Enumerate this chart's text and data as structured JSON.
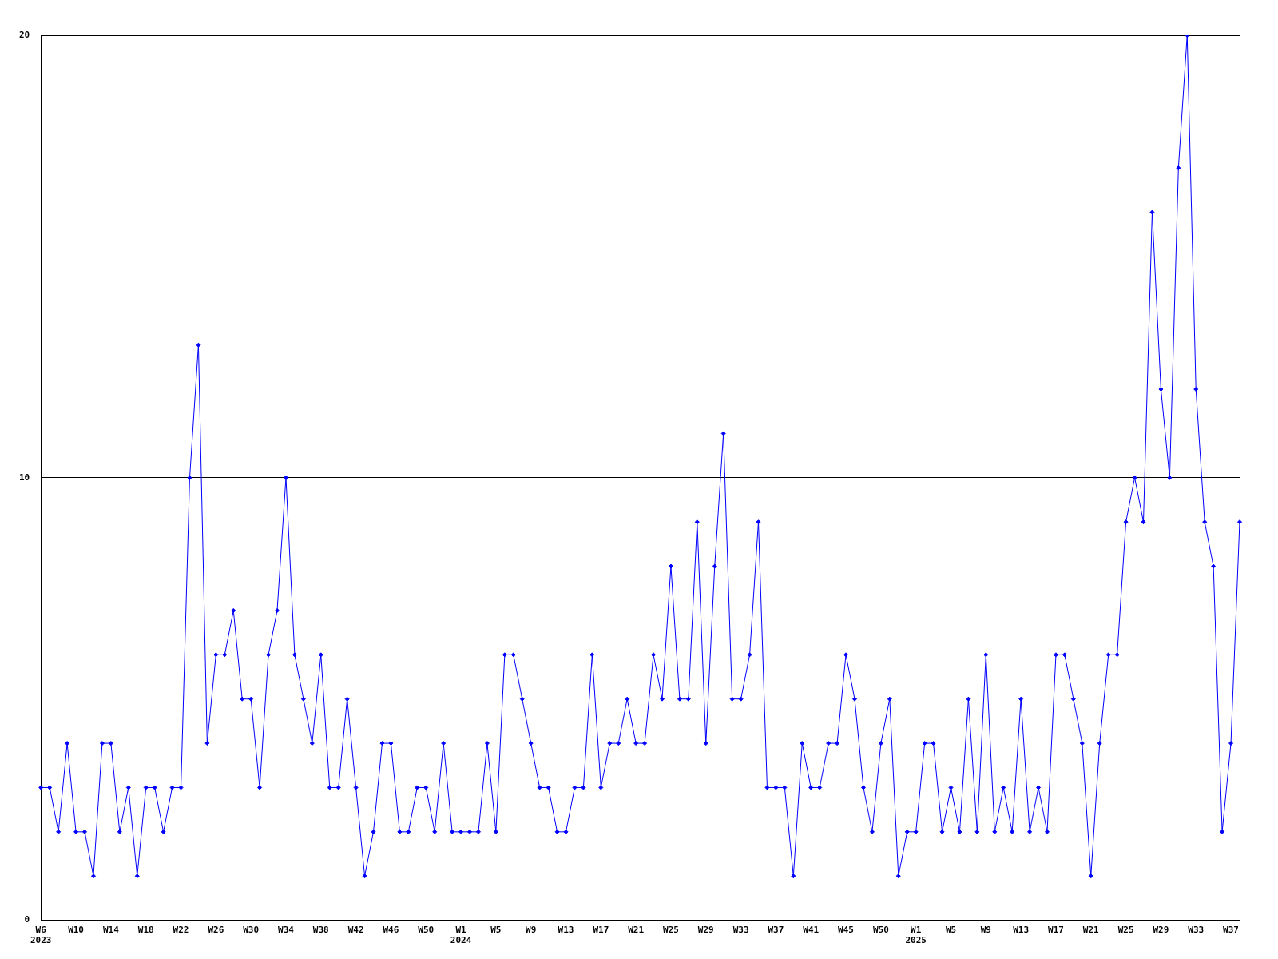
{
  "chart_data": {
    "type": "line",
    "categories": [
      "W6\n2023",
      null,
      null,
      null,
      "W10",
      null,
      null,
      null,
      "W14",
      null,
      null,
      null,
      "W18",
      null,
      null,
      null,
      "W22",
      null,
      null,
      null,
      "W26",
      null,
      null,
      null,
      "W30",
      null,
      null,
      null,
      "W34",
      null,
      null,
      null,
      "W38",
      null,
      null,
      null,
      "W42",
      null,
      null,
      null,
      "W46",
      null,
      null,
      null,
      "W50",
      null,
      null,
      null,
      "W1\n2024",
      null,
      null,
      null,
      "W5",
      null,
      null,
      null,
      "W9",
      null,
      null,
      null,
      "W13",
      null,
      null,
      null,
      "W17",
      null,
      null,
      null,
      "W21",
      null,
      null,
      null,
      "W25",
      null,
      null,
      null,
      "W29",
      null,
      null,
      null,
      "W33",
      null,
      null,
      null,
      "W37",
      null,
      null,
      null,
      "W41",
      null,
      null,
      null,
      "W45",
      null,
      null,
      null,
      "W50",
      null,
      null,
      null,
      "W1\n2025",
      null,
      null,
      null,
      "W5",
      null,
      null,
      null,
      "W9",
      null,
      null,
      null,
      "W13",
      null,
      null,
      null,
      "W17",
      null,
      null,
      null,
      "W21",
      null,
      null,
      null,
      "W25",
      null,
      null,
      null,
      "W29",
      null,
      null,
      null,
      "W33",
      null,
      null,
      null,
      "W37",
      null
    ],
    "series": [
      {
        "color": "#0000ff",
        "values": [
          3,
          3,
          2,
          4,
          2,
          2,
          1,
          4,
          4,
          2,
          3,
          1,
          3,
          3,
          2,
          3,
          3,
          10,
          13,
          4,
          6,
          6,
          7,
          5,
          5,
          3,
          6,
          7,
          10,
          6,
          5,
          4,
          6,
          3,
          3,
          5,
          3,
          1,
          2,
          4,
          4,
          2,
          2,
          3,
          3,
          2,
          4,
          2,
          2,
          2,
          2,
          4,
          2,
          6,
          6,
          5,
          4,
          3,
          3,
          2,
          2,
          3,
          3,
          6,
          3,
          4,
          4,
          5,
          4,
          4,
          6,
          5,
          8,
          5,
          5,
          9,
          4,
          8,
          11,
          5,
          5,
          6,
          9,
          3,
          3,
          3,
          1,
          4,
          3,
          3,
          4,
          4,
          6,
          5,
          3,
          2,
          4,
          5,
          1,
          2,
          2,
          4,
          4,
          2,
          3,
          2,
          5,
          2,
          6,
          2,
          3,
          2,
          5,
          2,
          3,
          2,
          6,
          6,
          5,
          4,
          1,
          4,
          6,
          6,
          9,
          10,
          9,
          16,
          12,
          10,
          17,
          20,
          12,
          9,
          8,
          2,
          4,
          9
        ]
      }
    ],
    "ylim": [
      0,
      20
    ],
    "yticks": [
      0,
      10,
      20
    ],
    "grid": "y",
    "legend": false,
    "marker": "diamond",
    "line_style": "solid"
  }
}
